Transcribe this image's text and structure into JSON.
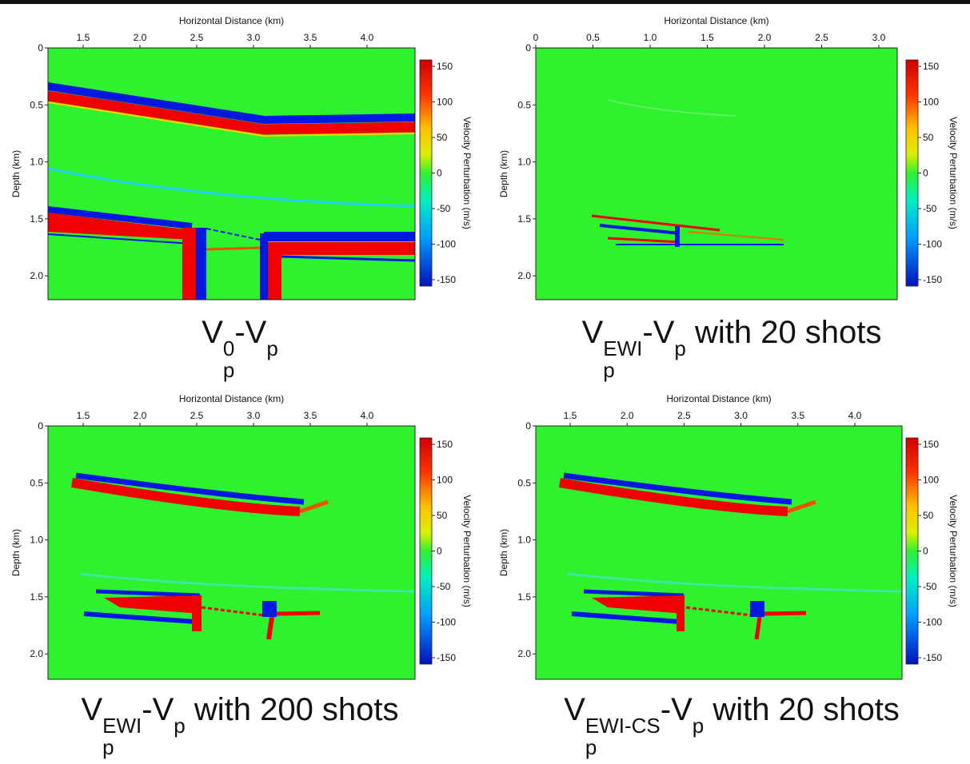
{
  "panels": [
    {
      "x_label": "Horizontal Distance (km)",
      "y_label": "Depth (km)",
      "x_ticks": [
        "1.5",
        "2.0",
        "2.5",
        "3.0",
        "3.5",
        "4.0"
      ],
      "y_ticks": [
        "0",
        "0.5",
        "1.0",
        "1.5",
        "2.0"
      ],
      "colorbar_label": "Velocity Perturbation (m/s)",
      "colorbar_ticks": [
        "150",
        "100",
        "50",
        "0",
        "-50",
        "-100",
        "-150"
      ],
      "caption": [
        {
          "text": "V"
        },
        {
          "text": "p",
          "pos": "sub"
        },
        {
          "text": "0",
          "pos": "sup"
        },
        {
          "text": "-V"
        },
        {
          "text": "p",
          "pos": "sub"
        }
      ]
    },
    {
      "x_label": "Horizontal Distance (km)",
      "y_label": "Depth (km)",
      "x_ticks": [
        "0",
        "0.5",
        "1.0",
        "1.5",
        "2.0",
        "2.5",
        "3.0"
      ],
      "y_ticks": [
        "0",
        "0.5",
        "1.0",
        "1.5",
        "2.0"
      ],
      "colorbar_label": "Velocity Perturbation (m/s)",
      "colorbar_ticks": [
        "150",
        "100",
        "50",
        "0",
        "-50",
        "-100",
        "-150"
      ],
      "caption": [
        {
          "text": "V"
        },
        {
          "text": "p",
          "pos": "sub"
        },
        {
          "text": "EWI",
          "pos": "sup"
        },
        {
          "text": "-V"
        },
        {
          "text": "p",
          "pos": "sub"
        },
        {
          "text": " with 20 shots"
        }
      ]
    },
    {
      "x_label": "Horizontal Distance (km)",
      "y_label": "Depth (km)",
      "x_ticks": [
        "1.5",
        "2.0",
        "2.5",
        "3.0",
        "3.5",
        "4.0"
      ],
      "y_ticks": [
        "0",
        "0.5",
        "1.0",
        "1.5",
        "2.0"
      ],
      "colorbar_label": "Velocity Perturbation (m/s)",
      "colorbar_ticks": [
        "150",
        "100",
        "50",
        "0",
        "-50",
        "-100",
        "-150"
      ],
      "caption": [
        {
          "text": "V"
        },
        {
          "text": "p",
          "pos": "sub"
        },
        {
          "text": "EWI",
          "pos": "sup"
        },
        {
          "text": "-V"
        },
        {
          "text": "p",
          "pos": "sub"
        },
        {
          "text": " with 200 shots"
        }
      ]
    },
    {
      "x_label": "Horizontal Distance (km)",
      "y_label": "Depth (km)",
      "x_ticks": [
        "1.5",
        "2.0",
        "2.5",
        "3.0",
        "3.5",
        "4.0"
      ],
      "y_ticks": [
        "0",
        "0.5",
        "1.0",
        "1.5",
        "2.0"
      ],
      "colorbar_label": "Velocity Perturbation (m/s)",
      "colorbar_ticks": [
        "150",
        "100",
        "50",
        "0",
        "-50",
        "-100",
        "-150"
      ],
      "caption": [
        {
          "text": "V"
        },
        {
          "text": "p",
          "pos": "sub"
        },
        {
          "text": "EWI-CS",
          "pos": "sup"
        },
        {
          "text": "-V"
        },
        {
          "text": "p",
          "pos": "sub"
        },
        {
          "text": " with 20 shots"
        }
      ]
    }
  ]
}
